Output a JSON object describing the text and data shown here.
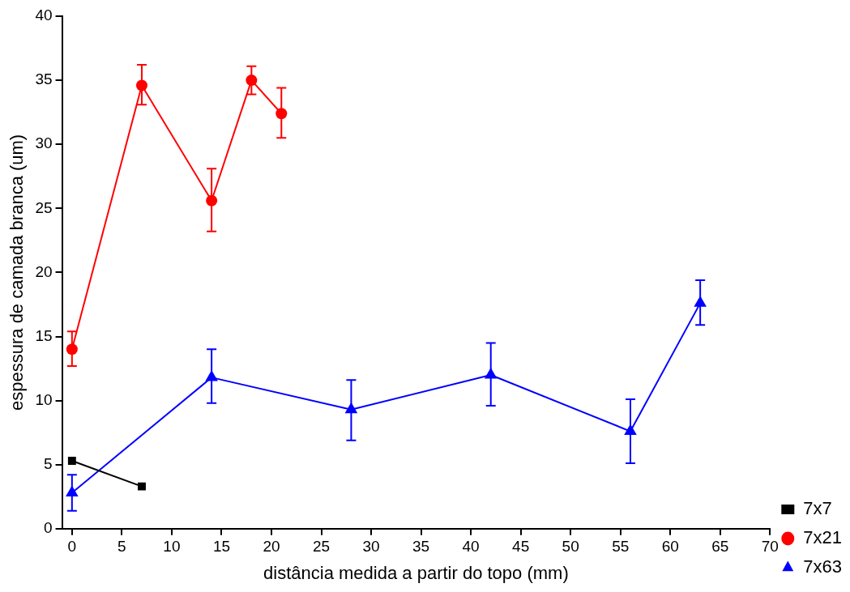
{
  "chart_data": {
    "type": "line",
    "xlabel": "distância medida a partir do topo (mm)",
    "ylabel": "espessura de camada branca (um)",
    "xlim": [
      -1,
      70
    ],
    "xticks": [
      0,
      5,
      10,
      15,
      20,
      25,
      30,
      35,
      40,
      45,
      50,
      55,
      60,
      65,
      70
    ],
    "ylim": [
      0,
      40
    ],
    "yticks": [
      0,
      5,
      10,
      15,
      20,
      25,
      30,
      35,
      40
    ],
    "legend": "right",
    "line_style": "solid",
    "series": [
      {
        "name": "7x7",
        "color": "#000000",
        "marker": "square",
        "x": [
          0,
          7
        ],
        "values": [
          5.3,
          3.3
        ]
      },
      {
        "name": "7x21",
        "color": "#ff0000",
        "marker": "circle",
        "x": [
          0,
          7,
          14,
          18,
          21
        ],
        "values": [
          14.0,
          34.6,
          25.6,
          35.0,
          32.4
        ],
        "errors": [
          [
            12.7,
            15.4
          ],
          [
            33.1,
            36.2
          ],
          [
            23.2,
            28.1
          ],
          [
            33.9,
            36.1
          ],
          [
            30.5,
            34.4
          ]
        ]
      },
      {
        "name": "7x63",
        "color": "#0000ff",
        "marker": "triangle",
        "x": [
          0,
          14,
          28,
          42,
          56,
          63
        ],
        "values": [
          2.8,
          11.8,
          9.3,
          12.0,
          7.6,
          17.6
        ],
        "errors": [
          [
            1.4,
            4.2
          ],
          [
            9.8,
            14.0
          ],
          [
            6.9,
            11.6
          ],
          [
            9.6,
            14.5
          ],
          [
            5.1,
            10.1
          ],
          [
            15.9,
            19.4
          ]
        ]
      }
    ]
  }
}
